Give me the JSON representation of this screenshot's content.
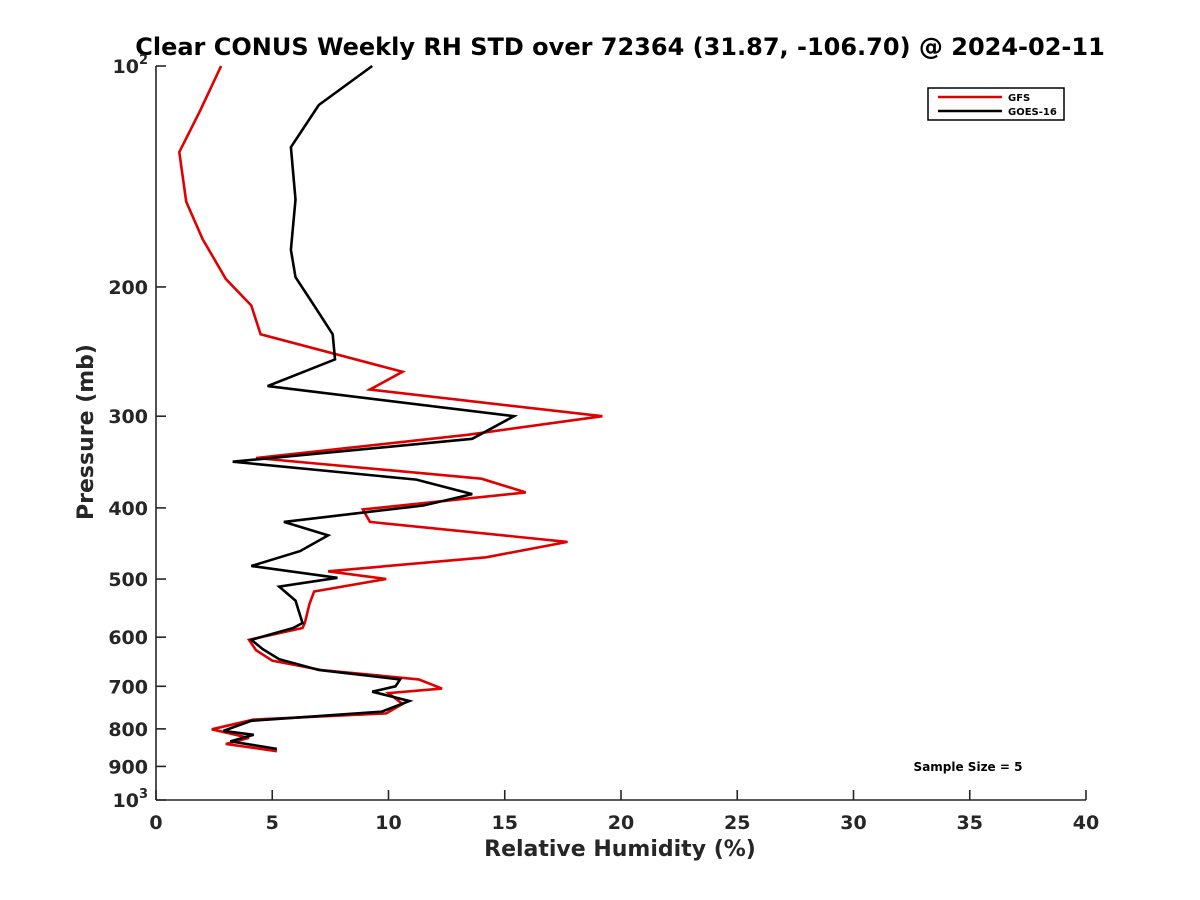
{
  "chart_data": {
    "type": "line",
    "title": "Clear CONUS Weekly RH STD over 72364 (31.87, -106.70) @ 2024-02-11",
    "xlabel": "Relative Humidity (%)",
    "ylabel": "Pressure (mb)",
    "xlim": [
      0,
      40
    ],
    "ylim": [
      100,
      1000
    ],
    "y_scale": "log",
    "y_reversed": true,
    "x_ticks": [
      0,
      5,
      10,
      15,
      20,
      25,
      30,
      35,
      40
    ],
    "x_tick_labels": [
      "0",
      "5",
      "10",
      "15",
      "20",
      "25",
      "30",
      "35",
      "40"
    ],
    "y_ticks": [
      {
        "value": 100,
        "base": "10",
        "exp": "2"
      },
      {
        "value": 200,
        "label": "200"
      },
      {
        "value": 300,
        "label": "300"
      },
      {
        "value": 400,
        "label": "400"
      },
      {
        "value": 500,
        "label": "500"
      },
      {
        "value": 600,
        "label": "600"
      },
      {
        "value": 700,
        "label": "700"
      },
      {
        "value": 800,
        "label": "800"
      },
      {
        "value": 900,
        "label": "900"
      },
      {
        "value": 1000,
        "base": "10",
        "exp": "3"
      }
    ],
    "grid": false,
    "legend_position": "top-right",
    "annotation": "Sample Size = 5",
    "series": [
      {
        "name": "GFS",
        "color": "#e00000",
        "points": [
          [
            2.8,
            100
          ],
          [
            1.9,
            115
          ],
          [
            1.0,
            131
          ],
          [
            1.3,
            153
          ],
          [
            2.0,
            172
          ],
          [
            3.0,
            195
          ],
          [
            4.1,
            212
          ],
          [
            4.5,
            232
          ],
          [
            10.6,
            261
          ],
          [
            9.2,
            276
          ],
          [
            19.2,
            300
          ],
          [
            13.4,
            318
          ],
          [
            4.3,
            342
          ],
          [
            14.0,
            365
          ],
          [
            15.9,
            381
          ],
          [
            8.9,
            402
          ],
          [
            9.2,
            418
          ],
          [
            17.7,
            445
          ],
          [
            14.2,
            467
          ],
          [
            7.4,
            488
          ],
          [
            9.9,
            500
          ],
          [
            6.8,
            520
          ],
          [
            6.6,
            541
          ],
          [
            6.4,
            574
          ],
          [
            6.3,
            583
          ],
          [
            4.0,
            605
          ],
          [
            4.3,
            625
          ],
          [
            5.0,
            646
          ],
          [
            7.1,
            665
          ],
          [
            11.3,
            685
          ],
          [
            12.3,
            705
          ],
          [
            10.0,
            715
          ],
          [
            10.6,
            740
          ],
          [
            9.9,
            762
          ],
          [
            4.2,
            777
          ],
          [
            2.4,
            801
          ],
          [
            4.0,
            823
          ],
          [
            3.0,
            839
          ],
          [
            5.2,
            858
          ]
        ]
      },
      {
        "name": "GOES-16",
        "color": "#000000",
        "points": [
          [
            9.3,
            100
          ],
          [
            7.0,
            113
          ],
          [
            5.8,
            129
          ],
          [
            6.0,
            152
          ],
          [
            5.8,
            178
          ],
          [
            6.0,
            194
          ],
          [
            6.8,
            212
          ],
          [
            7.6,
            232
          ],
          [
            7.7,
            251
          ],
          [
            4.8,
            273
          ],
          [
            15.4,
            300
          ],
          [
            13.6,
            322
          ],
          [
            3.3,
            346
          ],
          [
            11.2,
            366
          ],
          [
            13.6,
            383
          ],
          [
            11.5,
            397
          ],
          [
            5.5,
            418
          ],
          [
            7.4,
            436
          ],
          [
            6.2,
            458
          ],
          [
            4.1,
            480
          ],
          [
            7.8,
            498
          ],
          [
            5.3,
            512
          ],
          [
            6.0,
            535
          ],
          [
            6.3,
            574
          ],
          [
            5.9,
            583
          ],
          [
            4.1,
            605
          ],
          [
            4.6,
            623
          ],
          [
            5.3,
            643
          ],
          [
            7.0,
            665
          ],
          [
            10.5,
            685
          ],
          [
            10.3,
            700
          ],
          [
            9.3,
            712
          ],
          [
            10.9,
            733
          ],
          [
            9.7,
            758
          ],
          [
            4.1,
            780
          ],
          [
            2.9,
            805
          ],
          [
            4.2,
            815
          ],
          [
            3.2,
            832
          ],
          [
            5.2,
            852
          ]
        ]
      }
    ]
  }
}
